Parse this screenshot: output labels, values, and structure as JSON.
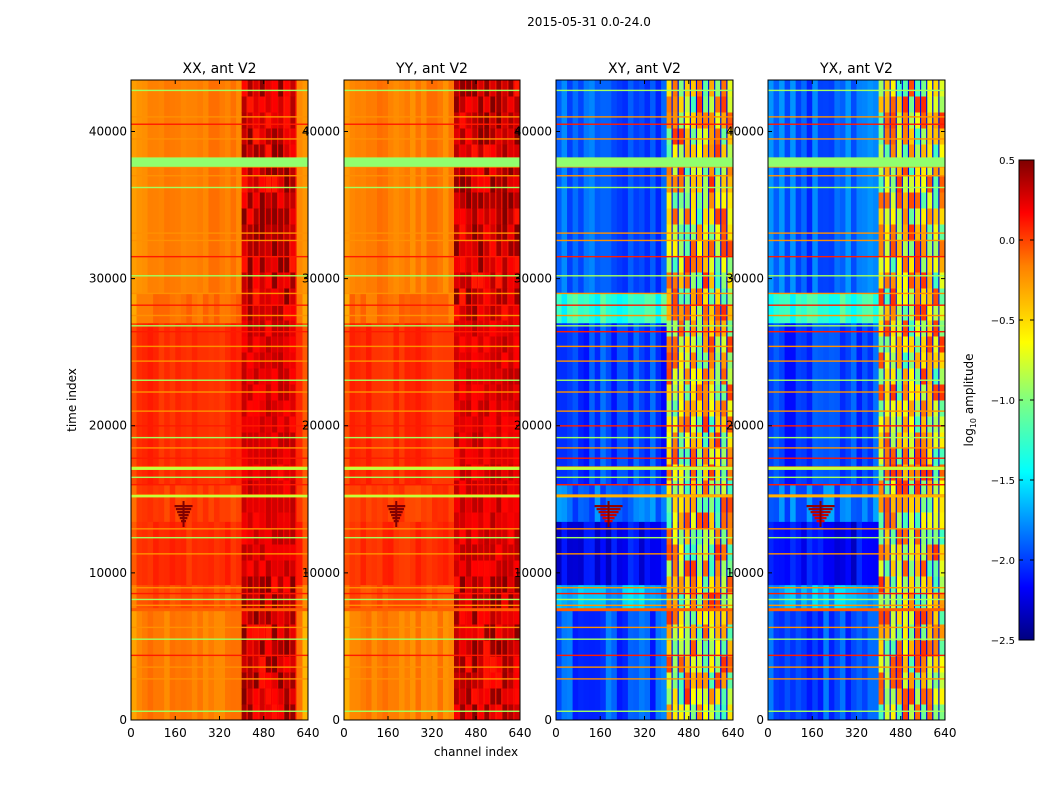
{
  "figure": {
    "title": "2015-05-31 0.0-24.0",
    "shared_xlabel": "channel index",
    "shared_ylabel": "time index"
  },
  "colorbar": {
    "label_prefix": "log",
    "label_subscript": "10",
    "label_suffix": " amplitude",
    "range": [
      -2.5,
      0.5
    ],
    "ticks": [
      "0.5",
      "0.0",
      "−0.5",
      "−1.0",
      "−1.5",
      "−2.0",
      "−2.5"
    ],
    "tick_values": [
      0.5,
      0.0,
      -0.5,
      -1.0,
      -1.5,
      -2.0,
      -2.5
    ],
    "colormap": "jet",
    "colormap_stops": [
      "#00007f",
      "#0000ff",
      "#0080ff",
      "#00ffff",
      "#80ff80",
      "#ffff00",
      "#ff8000",
      "#ff0000",
      "#7f0000"
    ]
  },
  "chart_data": [
    {
      "type": "heatmap",
      "title": "XX, ant V2",
      "xlim": [
        0,
        640
      ],
      "ylim": [
        0,
        43500
      ],
      "xticks": [
        0,
        160,
        320,
        480,
        640
      ],
      "yticks": [
        0,
        10000,
        20000,
        30000,
        40000
      ],
      "background_log10": -0.1,
      "notes_bands_log10": {
        "low_time_block": -0.25,
        "mid_time_block": 0.0,
        "rfi_channels": [
          400,
          580
        ],
        "rfi_level": 0.3
      }
    },
    {
      "type": "heatmap",
      "title": "YY, ant V2",
      "xlim": [
        0,
        640
      ],
      "ylim": [
        0,
        43500
      ],
      "xticks": [
        0,
        160,
        320,
        480,
        640
      ],
      "yticks": [
        0,
        10000,
        20000,
        30000,
        40000
      ],
      "background_log10": -0.1,
      "notes_bands_log10": {
        "low_time_block": -0.25,
        "mid_time_block": 0.05,
        "rfi_channels": [
          400,
          640
        ],
        "rfi_level": 0.3
      }
    },
    {
      "type": "heatmap",
      "title": "XY, ant V2",
      "xlim": [
        0,
        640
      ],
      "ylim": [
        0,
        43500
      ],
      "xticks": [
        0,
        160,
        320,
        480,
        640
      ],
      "yticks": [
        0,
        10000,
        20000,
        30000,
        40000
      ],
      "background_log10": -1.9,
      "notes_bands_log10": {
        "low_time_block": -1.9,
        "mid_time_block": -2.1,
        "rfi_channels": [
          400,
          640
        ],
        "rfi_level": -0.6
      }
    },
    {
      "type": "heatmap",
      "title": "YX, ant V2",
      "xlim": [
        0,
        640
      ],
      "ylim": [
        0,
        43500
      ],
      "xticks": [
        0,
        160,
        320,
        480,
        640
      ],
      "yticks": [
        0,
        10000,
        20000,
        30000,
        40000
      ],
      "background_log10": -1.9,
      "notes_bands_log10": {
        "low_time_block": -1.9,
        "mid_time_block": -2.1,
        "rfi_channels": [
          400,
          640
        ],
        "rfi_level": -0.6
      }
    }
  ]
}
